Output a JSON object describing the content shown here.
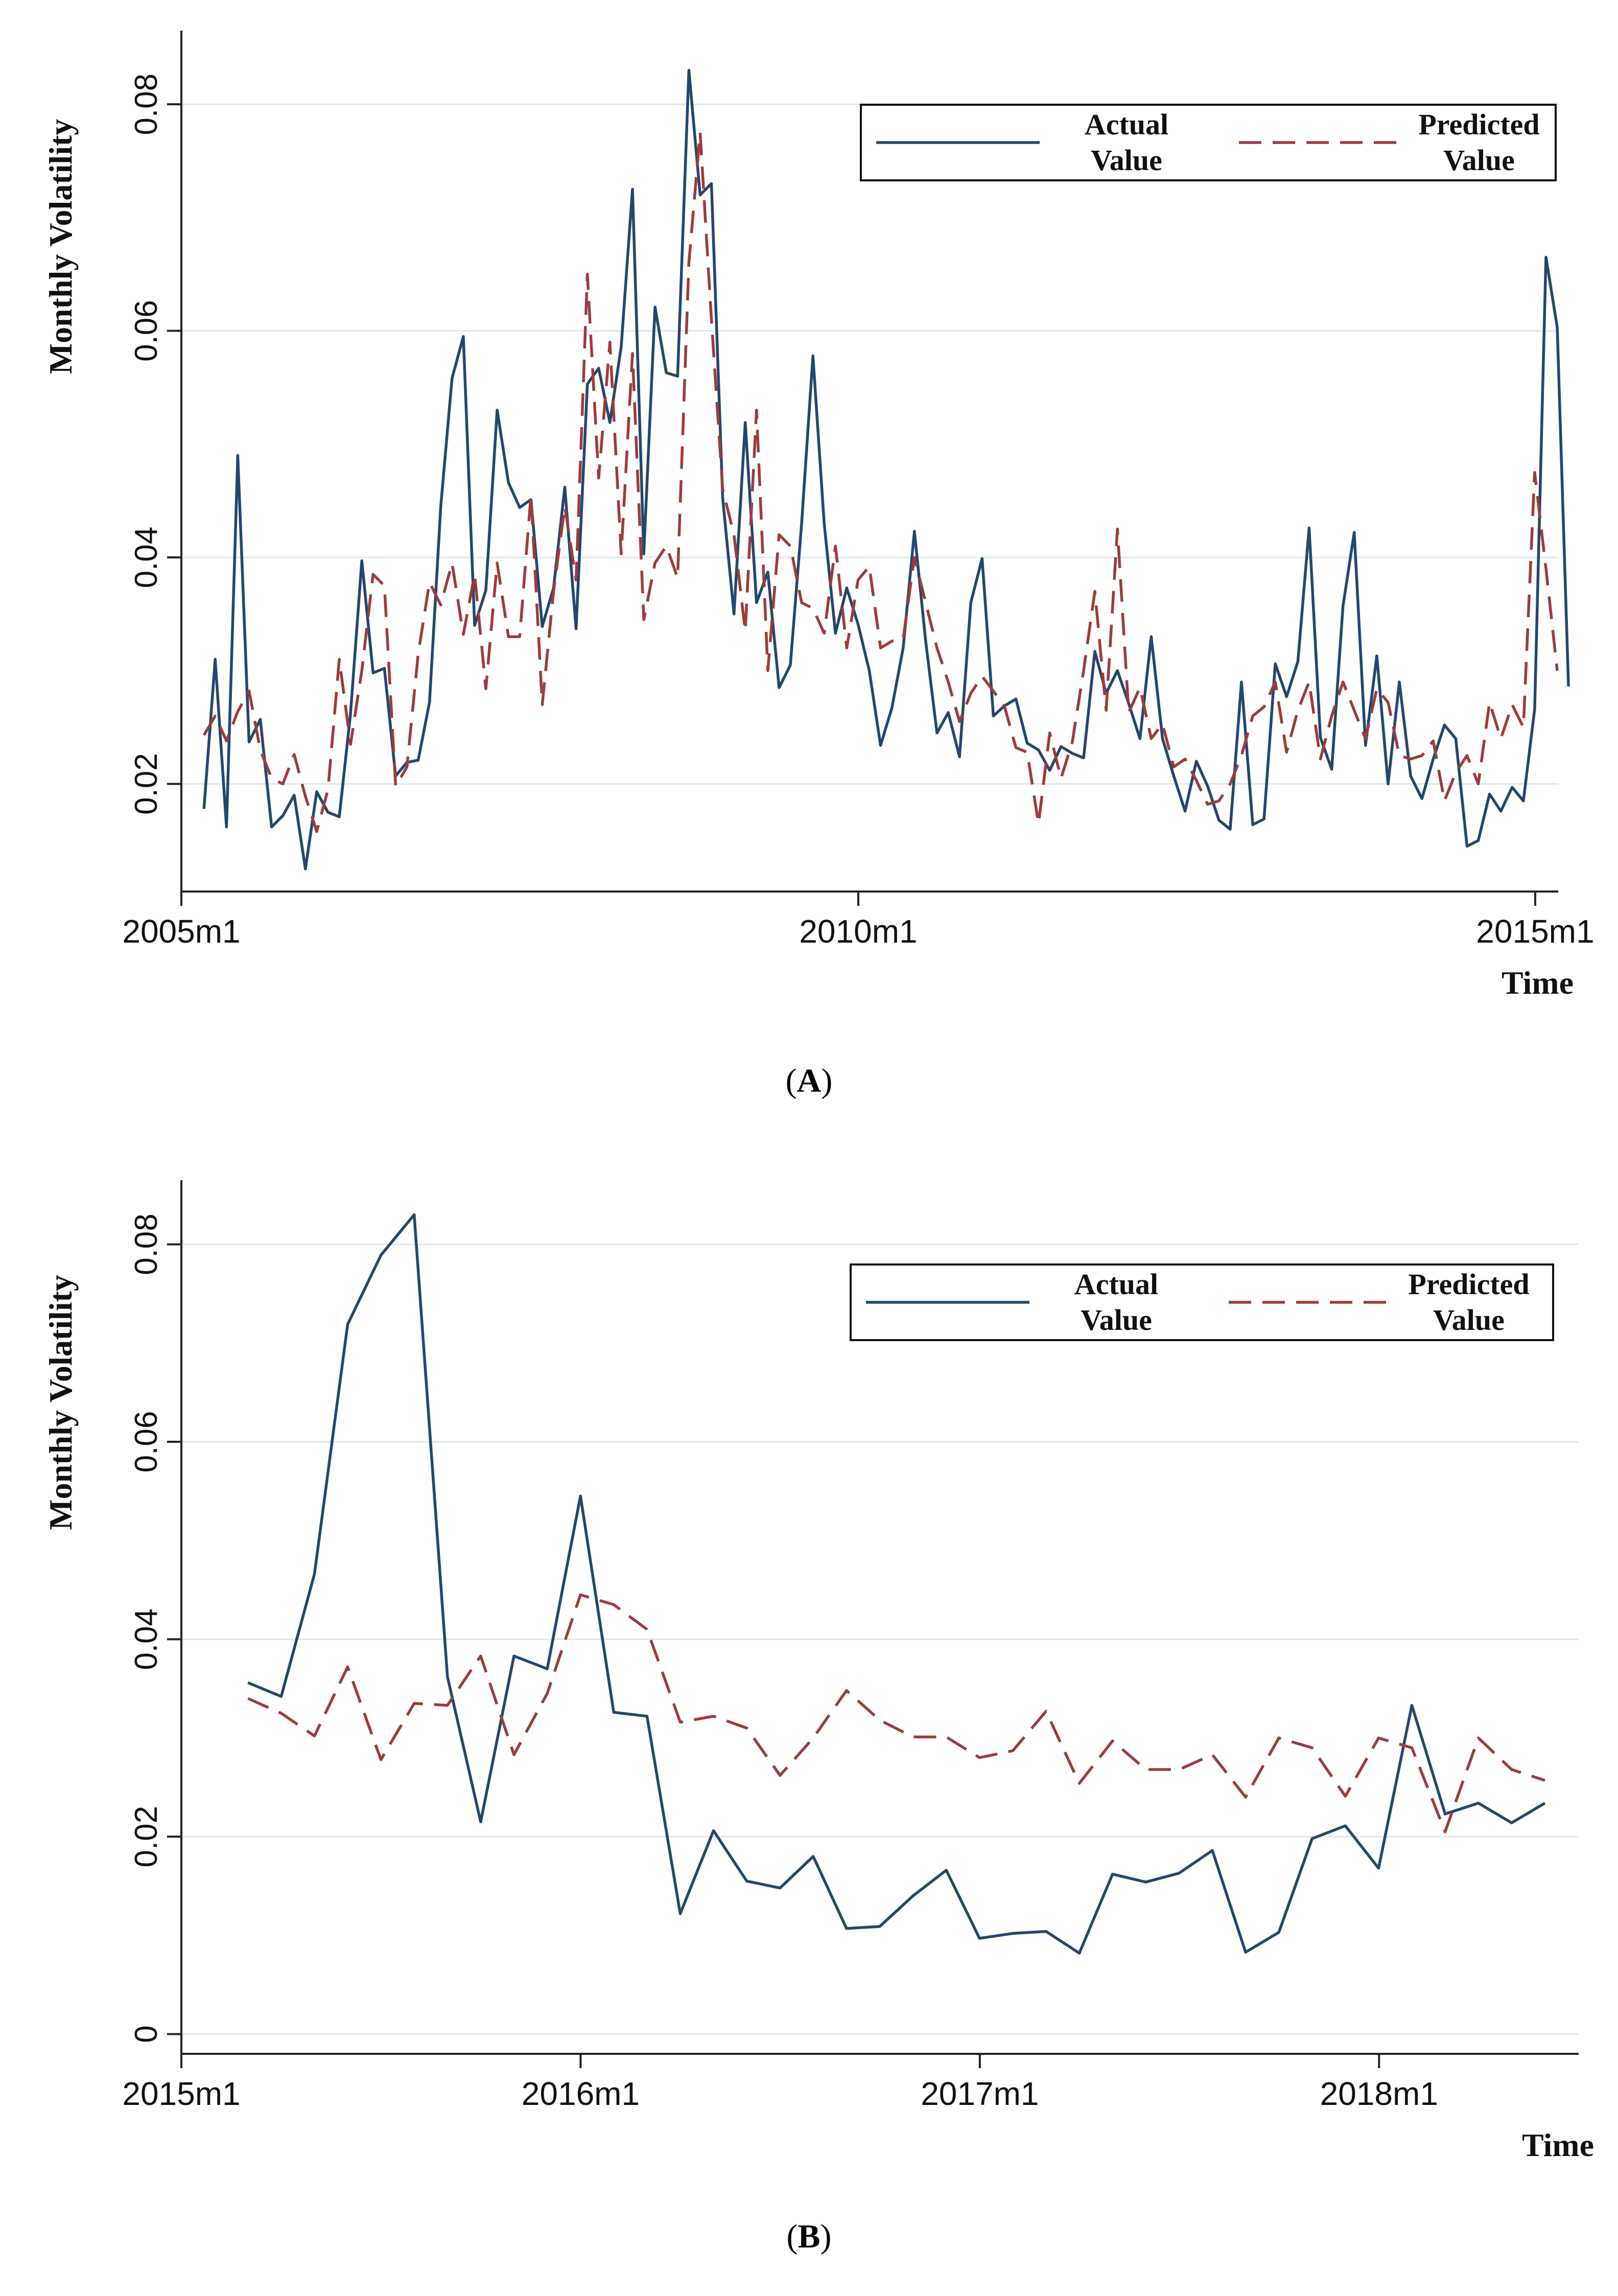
{
  "colors": {
    "actual": "#24476b",
    "predicted": "#9e3b3b",
    "grid": "#dfe9ef",
    "axis": "#222222"
  },
  "chart_data": [
    {
      "id": "A",
      "caption_letter": "A",
      "type": "line",
      "ylabel": "Monthly Volatility",
      "xlabel": "Time",
      "xlim": [
        2005.0,
        2015.17
      ],
      "ylim": [
        0.0105,
        0.0865
      ],
      "x_ticks": [
        2005.0,
        2010.0,
        2015.0
      ],
      "x_tick_labels": [
        "2005m1",
        "2010m1",
        "2015m1"
      ],
      "y_ticks": [
        0.02,
        0.04,
        0.06,
        0.08
      ],
      "y_tick_labels": [
        "0.02",
        "0.04",
        "0.06",
        "0.08"
      ],
      "legend": {
        "position": "top-right",
        "actual_label_lines": [
          "Actual",
          "Value"
        ],
        "predicted_label_lines": [
          "Predicted",
          "Value"
        ]
      },
      "x_start": 2005.1667,
      "x_step": 0.0833,
      "series": [
        {
          "name": "Actual Value",
          "style": "solid",
          "values": [
            0.0178,
            0.031,
            0.0162,
            0.049,
            0.0237,
            0.0257,
            0.0162,
            0.0172,
            0.019,
            0.0125,
            0.0193,
            0.0175,
            0.0171,
            0.0262,
            0.0397,
            0.0298,
            0.0302,
            0.0207,
            0.0219,
            0.0221,
            0.0272,
            0.0445,
            0.0558,
            0.0595,
            0.034,
            0.0371,
            0.053,
            0.0466,
            0.0444,
            0.0451,
            0.0339,
            0.0373,
            0.0462,
            0.0337,
            0.0553,
            0.0567,
            0.0519,
            0.0586,
            0.0725,
            0.0403,
            0.0621,
            0.0563,
            0.056,
            0.083,
            0.072,
            0.073,
            0.0452,
            0.035,
            0.0519,
            0.036,
            0.0387,
            0.0285,
            0.0305,
            0.043,
            0.0578,
            0.043,
            0.0333,
            0.0373,
            0.0341,
            0.03,
            0.0234,
            0.0267,
            0.032,
            0.0423,
            0.0326,
            0.0245,
            0.0263,
            0.0224,
            0.036,
            0.0399,
            0.026,
            0.0269,
            0.0275,
            0.0236,
            0.023,
            0.0212,
            0.0233,
            0.0227,
            0.0223,
            0.0317,
            0.028,
            0.03,
            0.0271,
            0.024,
            0.033,
            0.024,
            0.0207,
            0.0176,
            0.022,
            0.0198,
            0.0168,
            0.016,
            0.029,
            0.0164,
            0.0169,
            0.0306,
            0.0277,
            0.0308,
            0.0426,
            0.0241,
            0.0213,
            0.0357,
            0.0422,
            0.0234,
            0.0313,
            0.02,
            0.029,
            0.0207,
            0.0187,
            0.0222,
            0.0252,
            0.024,
            0.0145,
            0.015,
            0.0191,
            0.0176,
            0.0197,
            0.0185,
            0.0266,
            0.0665,
            0.0603,
            0.0286
          ]
        },
        {
          "name": "Predicted Value",
          "style": "dashed",
          "values": [
            0.0243,
            0.026,
            0.0238,
            0.0264,
            0.0282,
            0.023,
            0.0205,
            0.02,
            0.0226,
            0.0189,
            0.0158,
            0.0195,
            0.031,
            0.0235,
            0.03,
            0.0385,
            0.0375,
            0.0198,
            0.0215,
            0.0315,
            0.0378,
            0.0358,
            0.0395,
            0.0332,
            0.0385,
            0.0284,
            0.0395,
            0.033,
            0.033,
            0.0455,
            0.027,
            0.037,
            0.0445,
            0.038,
            0.065,
            0.047,
            0.059,
            0.0403,
            0.058,
            0.0345,
            0.0395,
            0.041,
            0.0382,
            0.066,
            0.0775,
            0.061,
            0.046,
            0.042,
            0.0335,
            0.053,
            0.03,
            0.042,
            0.041,
            0.036,
            0.0355,
            0.0333,
            0.041,
            0.032,
            0.038,
            0.0392,
            0.032,
            0.0326,
            0.0328,
            0.04,
            0.036,
            0.032,
            0.029,
            0.0255,
            0.028,
            0.0295,
            0.0282,
            0.0268,
            0.0232,
            0.0228,
            0.0165,
            0.0245,
            0.0205,
            0.0237,
            0.03,
            0.037,
            0.0265,
            0.0425,
            0.0263,
            0.0285,
            0.024,
            0.0253,
            0.0215,
            0.0222,
            0.0203,
            0.0182,
            0.0185,
            0.02,
            0.0225,
            0.026,
            0.0268,
            0.029,
            0.0228,
            0.0265,
            0.029,
            0.0222,
            0.026,
            0.029,
            0.0265,
            0.024,
            0.0284,
            0.0272,
            0.0225,
            0.0222,
            0.0225,
            0.0238,
            0.0185,
            0.021,
            0.0225,
            0.02,
            0.0272,
            0.024,
            0.027,
            0.025,
            0.0475,
            0.039,
            0.03
          ]
        }
      ]
    },
    {
      "id": "B",
      "caption_letter": "B",
      "type": "line",
      "ylabel": "Monthly Volatility",
      "xlabel": "Time",
      "xlim": [
        2015.0,
        2018.5
      ],
      "ylim": [
        -0.002,
        0.0865
      ],
      "x_ticks": [
        2015.0,
        2016.0,
        2017.0,
        2018.0
      ],
      "x_tick_labels": [
        "2015m1",
        "2016m1",
        "2017m1",
        "2018m1"
      ],
      "y_ticks": [
        0,
        0.02,
        0.04,
        0.06,
        0.08
      ],
      "y_tick_labels": [
        "0",
        "0.02",
        "0.04",
        "0.06",
        "0.08"
      ],
      "legend": {
        "position": "top-right",
        "actual_label_lines": [
          "Actual",
          "Value"
        ],
        "predicted_label_lines": [
          "Predicted",
          "Value"
        ]
      },
      "x_start": 2015.1667,
      "x_step": 0.0833,
      "series": [
        {
          "name": "Actual Value",
          "style": "solid",
          "values": [
            0.0356,
            0.0342,
            0.0466,
            0.0719,
            0.0789,
            0.083,
            0.0362,
            0.0215,
            0.0383,
            0.037,
            0.0545,
            0.0326,
            0.0322,
            0.0122,
            0.0206,
            0.0155,
            0.0148,
            0.018,
            0.0107,
            0.0109,
            0.014,
            0.0166,
            0.0097,
            0.0102,
            0.0104,
            0.0082,
            0.0162,
            0.0154,
            0.0163,
            0.0186,
            0.0083,
            0.0103,
            0.0198,
            0.0211,
            0.0168,
            0.0333,
            0.0223,
            0.0234,
            0.0214,
            0.0234
          ]
        },
        {
          "name": "Predicted Value",
          "style": "dashed",
          "values": [
            0.034,
            0.0325,
            0.0302,
            0.0372,
            0.0278,
            0.0335,
            0.0333,
            0.0383,
            0.0283,
            0.0345,
            0.0445,
            0.0435,
            0.041,
            0.0316,
            0.0322,
            0.031,
            0.0262,
            0.03,
            0.0348,
            0.0318,
            0.0301,
            0.0301,
            0.028,
            0.0287,
            0.0327,
            0.0254,
            0.0297,
            0.0268,
            0.0268,
            0.0283,
            0.024,
            0.03,
            0.029,
            0.0241,
            0.03,
            0.029,
            0.0205,
            0.03,
            0.0268,
            0.0257
          ]
        }
      ]
    }
  ]
}
